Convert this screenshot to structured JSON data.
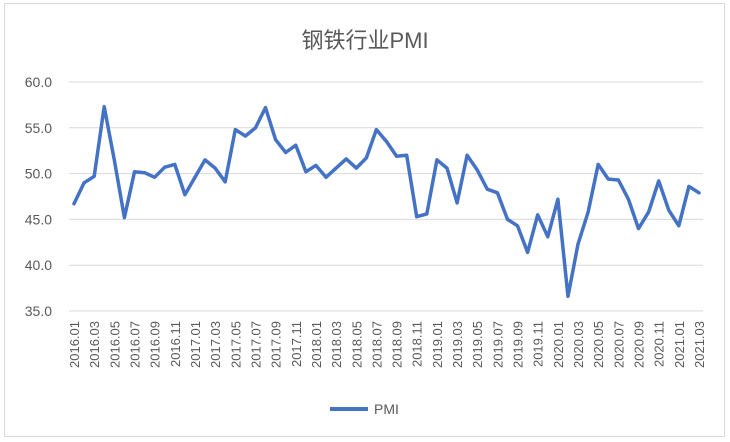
{
  "chart_data": {
    "type": "line",
    "title": "钢铁行业PMI",
    "xlabel": "",
    "ylabel": "",
    "ylim": [
      35,
      60
    ],
    "yticks": [
      "35.0",
      "40.0",
      "45.0",
      "50.0",
      "55.0",
      "60.0"
    ],
    "grid": true,
    "legend_position": "bottom",
    "x": [
      "2016.01",
      "2016.02",
      "2016.03",
      "2016.04",
      "2016.05",
      "2016.06",
      "2016.07",
      "2016.08",
      "2016.09",
      "2016.10",
      "2016.11",
      "2016.12",
      "2017.01",
      "2017.02",
      "2017.03",
      "2017.04",
      "2017.05",
      "2017.06",
      "2017.07",
      "2017.08",
      "2017.09",
      "2017.10",
      "2017.11",
      "2017.12",
      "2018.01",
      "2018.02",
      "2018.03",
      "2018.04",
      "2018.05",
      "2018.06",
      "2018.07",
      "2018.08",
      "2018.09",
      "2018.10",
      "2018.11",
      "2018.12",
      "2019.01",
      "2019.02",
      "2019.03",
      "2019.04",
      "2019.05",
      "2019.06",
      "2019.07",
      "2019.08",
      "2019.09",
      "2019.10",
      "2019.11",
      "2019.12",
      "2020.01",
      "2020.02",
      "2020.03",
      "2020.04",
      "2020.05",
      "2020.06",
      "2020.07",
      "2020.08",
      "2020.09",
      "2020.10",
      "2020.11",
      "2020.12",
      "2021.01",
      "2021.02",
      "2021.03"
    ],
    "xtick_labels": [
      "2016.01",
      "2016.03",
      "2016.05",
      "2016.07",
      "2016.09",
      "2016.11",
      "2017.01",
      "2017.03",
      "2017.05",
      "2017.07",
      "2017.09",
      "2017.11",
      "2018.01",
      "2018.03",
      "2018.05",
      "2018.07",
      "2018.09",
      "2018.11",
      "2019.01",
      "2019.03",
      "2019.05",
      "2019.07",
      "2019.09",
      "2019.11",
      "2020.01",
      "2020.03",
      "2020.05",
      "2020.07",
      "2020.09",
      "2020.11",
      "2021.01",
      "2021.03"
    ],
    "series": [
      {
        "name": "PMI",
        "color": "#4472C4",
        "values": [
          46.7,
          49.0,
          49.7,
          57.3,
          51.5,
          45.2,
          50.2,
          50.1,
          49.6,
          50.7,
          51.0,
          47.7,
          49.6,
          51.5,
          50.6,
          49.1,
          54.8,
          54.1,
          55.0,
          57.2,
          53.7,
          52.3,
          53.1,
          50.2,
          50.9,
          49.6,
          50.6,
          51.6,
          50.6,
          51.7,
          54.8,
          53.5,
          51.9,
          52.0,
          45.3,
          45.6,
          51.5,
          50.6,
          46.8,
          52.0,
          50.4,
          48.3,
          47.9,
          45.0,
          44.3,
          41.4,
          45.5,
          43.1,
          47.2,
          36.6,
          42.3,
          45.8,
          51.0,
          49.4,
          49.3,
          47.2,
          44.0,
          45.8,
          49.2,
          46.0,
          44.3,
          48.6,
          47.9
        ]
      }
    ]
  }
}
